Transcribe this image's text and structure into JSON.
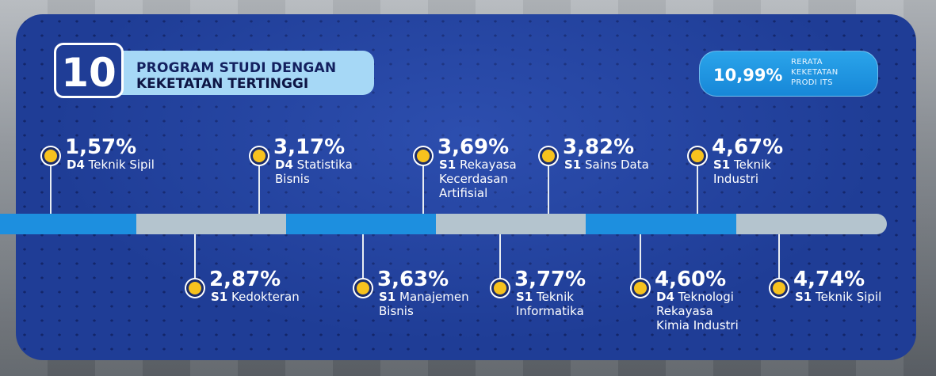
{
  "header": {
    "count": "10",
    "title_line1": "PROGRAM STUDI DENGAN",
    "title_line2": "KEKETATAN TERTINGGI"
  },
  "average": {
    "value": "10,99%",
    "label_line1": "RERATA",
    "label_line2": "KEKETATAN",
    "label_line3": "PRODI ITS"
  },
  "programs": [
    {
      "rank": 1,
      "pct": "1,57%",
      "degree": "D4",
      "name_lines": [
        "Teknik Sipil"
      ]
    },
    {
      "rank": 2,
      "pct": "2,87%",
      "degree": "S1",
      "name_lines": [
        "Kedokteran"
      ]
    },
    {
      "rank": 3,
      "pct": "3,17%",
      "degree": "D4",
      "name_lines": [
        "Statistika",
        "Bisnis"
      ]
    },
    {
      "rank": 4,
      "pct": "3,63%",
      "degree": "S1",
      "name_lines": [
        "Manajemen",
        "Bisnis"
      ]
    },
    {
      "rank": 5,
      "pct": "3,69%",
      "degree": "S1",
      "name_lines": [
        "Rekayasa",
        "Kecerdasan",
        "Artifisial"
      ]
    },
    {
      "rank": 6,
      "pct": "3,77%",
      "degree": "S1",
      "name_lines": [
        "Teknik",
        "Informatika"
      ]
    },
    {
      "rank": 7,
      "pct": "3,82%",
      "degree": "S1",
      "name_lines": [
        "Sains Data"
      ]
    },
    {
      "rank": 8,
      "pct": "4,60%",
      "degree": "D4",
      "name_lines": [
        "Teknologi",
        "Rekayasa",
        "Kimia Industri"
      ]
    },
    {
      "rank": 9,
      "pct": "4,67%",
      "degree": "S1",
      "name_lines": [
        "Teknik",
        "Industri"
      ]
    },
    {
      "rank": 10,
      "pct": "4,74%",
      "degree": "S1",
      "name_lines": [
        "Teknik Sipil"
      ]
    }
  ],
  "colors": {
    "card": "#1f3d96",
    "title_pill": "#a6d8f6",
    "average_pill": "#1d8fdf",
    "timeline_dark": "#1d8fdf",
    "timeline_light": "#b4c4ce",
    "dot": "#f7c21e"
  }
}
